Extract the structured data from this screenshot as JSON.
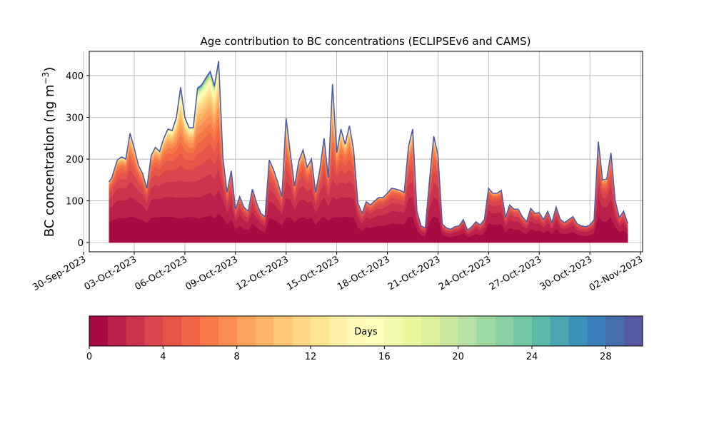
{
  "chart_data": {
    "type": "area",
    "title": "Age contribution to BC concentrations (ECLIPSEv6 and CAMS)",
    "ylabel": "BC concentration (ng m",
    "ylabel_superscript": "−3",
    "ylabel_close": ")",
    "xlabel": "",
    "y_unit": "ng m-3",
    "x_unit": "date",
    "xlim": [
      "2023-09-30T08:00",
      "2023-11-02T03:00"
    ],
    "ylim": [
      -22,
      458
    ],
    "grid": true,
    "x_tick_labels": [
      "30-Sep-2023",
      "03-Oct-2023",
      "06-Oct-2023",
      "09-Oct-2023",
      "12-Oct-2023",
      "15-Oct-2023",
      "18-Oct-2023",
      "21-Oct-2023",
      "24-Oct-2023",
      "27-Oct-2023",
      "30-Oct-2023",
      "02-Nov-2023"
    ],
    "x_ticks": [
      "2023-09-30",
      "2023-10-03",
      "2023-10-06",
      "2023-10-09",
      "2023-10-12",
      "2023-10-15",
      "2023-10-18",
      "2023-10-21",
      "2023-10-24",
      "2023-10-27",
      "2023-10-30",
      "2023-11-02"
    ],
    "y_ticks": [
      0,
      100,
      200,
      300,
      400
    ],
    "total_concentration": {
      "x": [
        "2023-10-01T12:00",
        "2023-10-01T16:00",
        "2023-10-02T00:00",
        "2023-10-02T06:00",
        "2023-10-02T12:00",
        "2023-10-02T18:00",
        "2023-10-03T00:00",
        "2023-10-03T06:00",
        "2023-10-03T12:00",
        "2023-10-03T18:00",
        "2023-10-04T00:00",
        "2023-10-04T06:00",
        "2023-10-04T12:00",
        "2023-10-04T18:00",
        "2023-10-05T00:00",
        "2023-10-05T06:00",
        "2023-10-05T12:00",
        "2023-10-05T18:00",
        "2023-10-06T00:00",
        "2023-10-06T06:00",
        "2023-10-06T12:00",
        "2023-10-06T18:00",
        "2023-10-07T00:00",
        "2023-10-07T06:00",
        "2023-10-07T12:00",
        "2023-10-07T18:00",
        "2023-10-08T00:00",
        "2023-10-08T06:00",
        "2023-10-08T12:00",
        "2023-10-08T18:00",
        "2023-10-09T00:00",
        "2023-10-09T06:00",
        "2023-10-09T12:00",
        "2023-10-09T18:00",
        "2023-10-10T00:00",
        "2023-10-10T06:00",
        "2023-10-10T12:00",
        "2023-10-10T18:00",
        "2023-10-11T00:00",
        "2023-10-11T06:00",
        "2023-10-11T12:00",
        "2023-10-11T18:00",
        "2023-10-12T00:00",
        "2023-10-12T06:00",
        "2023-10-12T12:00",
        "2023-10-12T18:00",
        "2023-10-13T00:00",
        "2023-10-13T06:00",
        "2023-10-13T12:00",
        "2023-10-13T18:00",
        "2023-10-14T00:00",
        "2023-10-14T06:00",
        "2023-10-14T12:00",
        "2023-10-14T18:00",
        "2023-10-15T00:00",
        "2023-10-15T06:00",
        "2023-10-15T12:00",
        "2023-10-15T18:00",
        "2023-10-16T00:00",
        "2023-10-16T06:00",
        "2023-10-16T12:00",
        "2023-10-16T18:00",
        "2023-10-17T00:00",
        "2023-10-17T06:00",
        "2023-10-17T12:00",
        "2023-10-17T18:00",
        "2023-10-18T00:00",
        "2023-10-18T06:00",
        "2023-10-18T12:00",
        "2023-10-18T18:00",
        "2023-10-19T00:00",
        "2023-10-19T06:00",
        "2023-10-19T12:00",
        "2023-10-19T18:00",
        "2023-10-20T00:00",
        "2023-10-20T06:00",
        "2023-10-20T12:00",
        "2023-10-20T18:00",
        "2023-10-21T00:00",
        "2023-10-21T06:00",
        "2023-10-21T12:00",
        "2023-10-21T18:00",
        "2023-10-22T00:00",
        "2023-10-22T06:00",
        "2023-10-22T12:00",
        "2023-10-22T18:00",
        "2023-10-23T00:00",
        "2023-10-23T06:00",
        "2023-10-23T12:00",
        "2023-10-23T18:00",
        "2023-10-24T00:00",
        "2023-10-24T06:00",
        "2023-10-24T12:00",
        "2023-10-24T18:00",
        "2023-10-25T00:00",
        "2023-10-25T06:00",
        "2023-10-25T12:00",
        "2023-10-25T18:00",
        "2023-10-26T00:00",
        "2023-10-26T06:00",
        "2023-10-26T12:00",
        "2023-10-26T18:00",
        "2023-10-27T00:00",
        "2023-10-27T06:00",
        "2023-10-27T12:00",
        "2023-10-27T18:00",
        "2023-10-28T00:00",
        "2023-10-28T06:00",
        "2023-10-28T12:00",
        "2023-10-28T18:00",
        "2023-10-29T00:00",
        "2023-10-29T06:00",
        "2023-10-29T12:00",
        "2023-10-29T18:00",
        "2023-10-30T00:00",
        "2023-10-30T06:00",
        "2023-10-30T12:00",
        "2023-10-30T18:00",
        "2023-10-31T00:00",
        "2023-10-31T06:00",
        "2023-10-31T12:00",
        "2023-10-31T18:00",
        "2023-11-01T00:00",
        "2023-11-01T06:00"
      ],
      "y": [
        145,
        155,
        198,
        205,
        200,
        262,
        226,
        185,
        165,
        130,
        208,
        228,
        218,
        250,
        272,
        268,
        300,
        372,
        300,
        275,
        275,
        370,
        378,
        395,
        410,
        375,
        435,
        205,
        120,
        172,
        80,
        110,
        85,
        75,
        128,
        95,
        70,
        62,
        198,
        175,
        145,
        110,
        298,
        215,
        135,
        195,
        222,
        180,
        200,
        120,
        175,
        250,
        155,
        380,
        215,
        272,
        235,
        280,
        222,
        95,
        70,
        98,
        90,
        100,
        108,
        108,
        118,
        130,
        128,
        125,
        120,
        230,
        272,
        75,
        40,
        35,
        150,
        255,
        210,
        45,
        35,
        32,
        38,
        40,
        55,
        30,
        38,
        50,
        42,
        55,
        130,
        118,
        118,
        125,
        60,
        90,
        80,
        80,
        62,
        50,
        82,
        70,
        72,
        55,
        75,
        48,
        85,
        55,
        48,
        55,
        62,
        45,
        40,
        38,
        42,
        55,
        242,
        150,
        152,
        215,
        100,
        60,
        75,
        46
      ]
    },
    "colorbar": {
      "label": "Days",
      "min": 0,
      "max": 30,
      "n_bins": 30,
      "ticks": [
        0,
        4,
        8,
        12,
        16,
        20,
        24,
        28
      ],
      "tick_labels": [
        "0",
        "4",
        "8",
        "12",
        "16",
        "20",
        "24",
        "28"
      ],
      "colormap": "Spectral"
    },
    "age_layers": {
      "description_note": "stacked age bins 0-30 days; lower ages dominate",
      "bands": 30
    }
  }
}
